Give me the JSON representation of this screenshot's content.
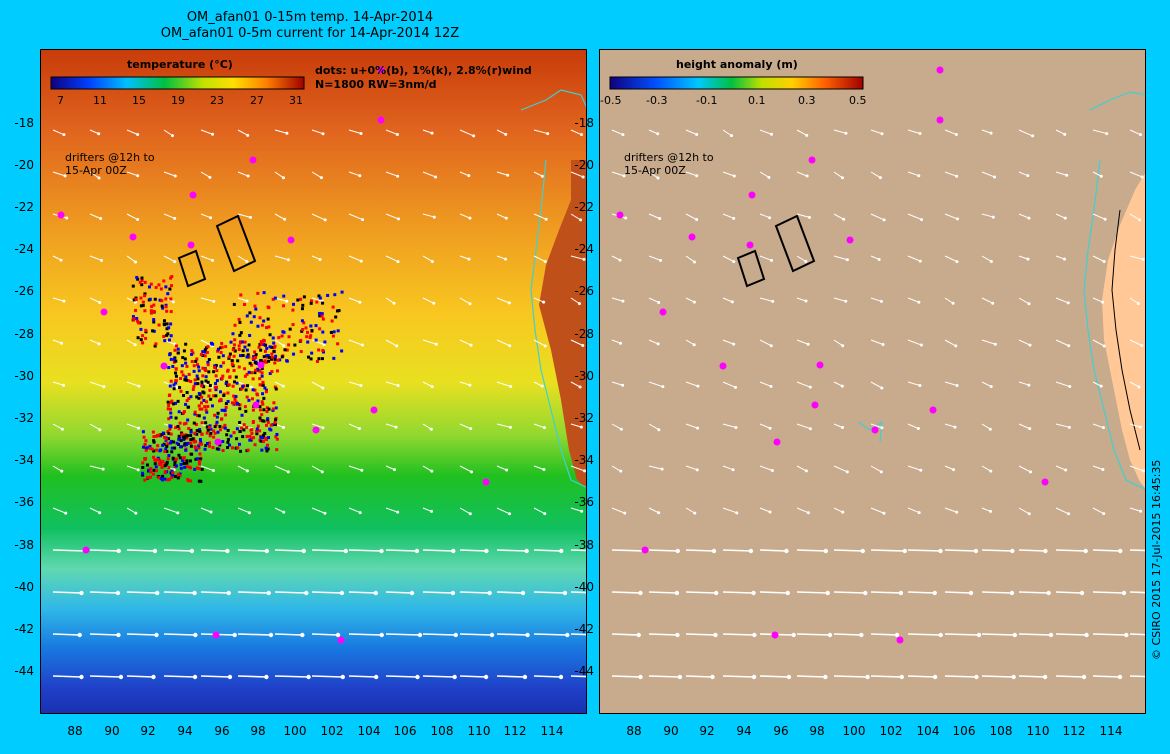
{
  "titles": {
    "line1": "OM_afan01 0-15m temp. 14-Apr-2014",
    "line2": "OM_afan01 0-5m current for 14-Apr-2014 12Z"
  },
  "left_panel": {
    "legend_title": "temperature (°C)",
    "colorbar_ticks": [
      "7",
      "11",
      "15",
      "19",
      "23",
      "27",
      "31"
    ],
    "dots_note_line1": "dots: u+0%(b), 1%(k), 2.8%(r)wind",
    "dots_note_line2": "N=1800 RW=3nm/d",
    "drifters_line1": "drifters @12h to",
    "drifters_line2": "15-Apr 00Z"
  },
  "right_panel": {
    "legend_title": "height anomaly (m)",
    "colorbar_ticks": [
      "-0.5",
      "-0.3",
      "-0.1",
      "0.1",
      "0.3",
      "0.5"
    ],
    "drifters_line1": "drifters @12h to",
    "drifters_line2": "15-Apr 00Z"
  },
  "axes": {
    "y_ticks": [
      "-18",
      "-20",
      "-22",
      "-24",
      "-26",
      "-28",
      "-30",
      "-32",
      "-34",
      "-36",
      "-38",
      "-40",
      "-42",
      "-44"
    ],
    "x_ticks": [
      "88",
      "90",
      "92",
      "94",
      "96",
      "98",
      "100",
      "102",
      "104",
      "106",
      "108",
      "110",
      "112",
      "114"
    ]
  },
  "credit": "© CSIRO 2015   17-Jul-2015 16:45:35",
  "colors": {
    "background": "#00ccff",
    "land": "#ffc896",
    "right_panel_fill": "#c8aa8c",
    "coast": "#40d0d0",
    "drifter_magenta": "#ff00ff",
    "dots_blue": "#0000ff",
    "dots_black": "#000000",
    "dots_red": "#ff0000",
    "arrows": "#ffffff"
  }
}
